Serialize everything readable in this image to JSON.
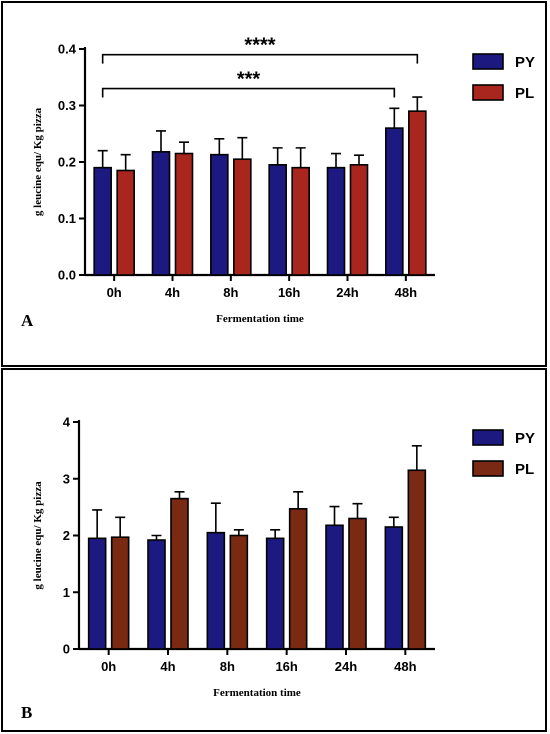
{
  "colors": {
    "py": "#1c1a80",
    "pl_a": "#a8261d",
    "pl_b": "#7a2a12"
  },
  "chart_data": [
    {
      "panel_label": "A",
      "type": "bar",
      "title": "",
      "xlabel": "Fermentation time",
      "ylabel": "g leucine equ/ Kg pizza",
      "ylim": [
        0,
        0.4
      ],
      "yticks": [
        0.0,
        0.1,
        0.2,
        0.3,
        0.4
      ],
      "ytick_labels": [
        "0.0",
        "0.1",
        "0.2",
        "0.3",
        "0.4"
      ],
      "categories": [
        "0h",
        "4h",
        "8h",
        "16h",
        "24h",
        "48h"
      ],
      "legend": "top-right",
      "grid": false,
      "series": [
        {
          "name": "PY",
          "values": [
            0.19,
            0.218,
            0.213,
            0.195,
            0.19,
            0.26
          ],
          "errors": [
            0.03,
            0.037,
            0.028,
            0.03,
            0.025,
            0.035
          ]
        },
        {
          "name": "PL",
          "values": [
            0.185,
            0.215,
            0.205,
            0.19,
            0.195,
            0.29
          ],
          "errors": [
            0.028,
            0.02,
            0.038,
            0.035,
            0.017,
            0.025
          ]
        }
      ],
      "annotations": [
        {
          "text": "****",
          "from": {
            "category": "0h",
            "series": "PY"
          },
          "to": {
            "category": "48h",
            "series": "PL"
          },
          "y": 0.39
        },
        {
          "text": "***",
          "from": {
            "category": "0h",
            "series": "PY"
          },
          "to": {
            "category": "48h",
            "series": "PY"
          },
          "y": 0.33
        }
      ]
    },
    {
      "panel_label": "B",
      "type": "bar",
      "title": "",
      "xlabel": "Fermentation time",
      "ylabel": "g leucine equ/ Kg pizza",
      "ylim": [
        0,
        4
      ],
      "yticks": [
        0,
        1,
        2,
        3,
        4
      ],
      "ytick_labels": [
        "0",
        "1",
        "2",
        "3",
        "4"
      ],
      "categories": [
        "0h",
        "4h",
        "8h",
        "16h",
        "24h",
        "48h"
      ],
      "legend": "top-right",
      "grid": false,
      "series": [
        {
          "name": "PY",
          "values": [
            1.95,
            1.92,
            2.05,
            1.95,
            2.18,
            2.15
          ],
          "errors": [
            0.5,
            0.08,
            0.52,
            0.15,
            0.33,
            0.17
          ]
        },
        {
          "name": "PL",
          "values": [
            1.97,
            2.65,
            2.0,
            2.47,
            2.3,
            3.15
          ],
          "errors": [
            0.35,
            0.12,
            0.1,
            0.3,
            0.26,
            0.43
          ]
        }
      ],
      "annotations": []
    }
  ]
}
